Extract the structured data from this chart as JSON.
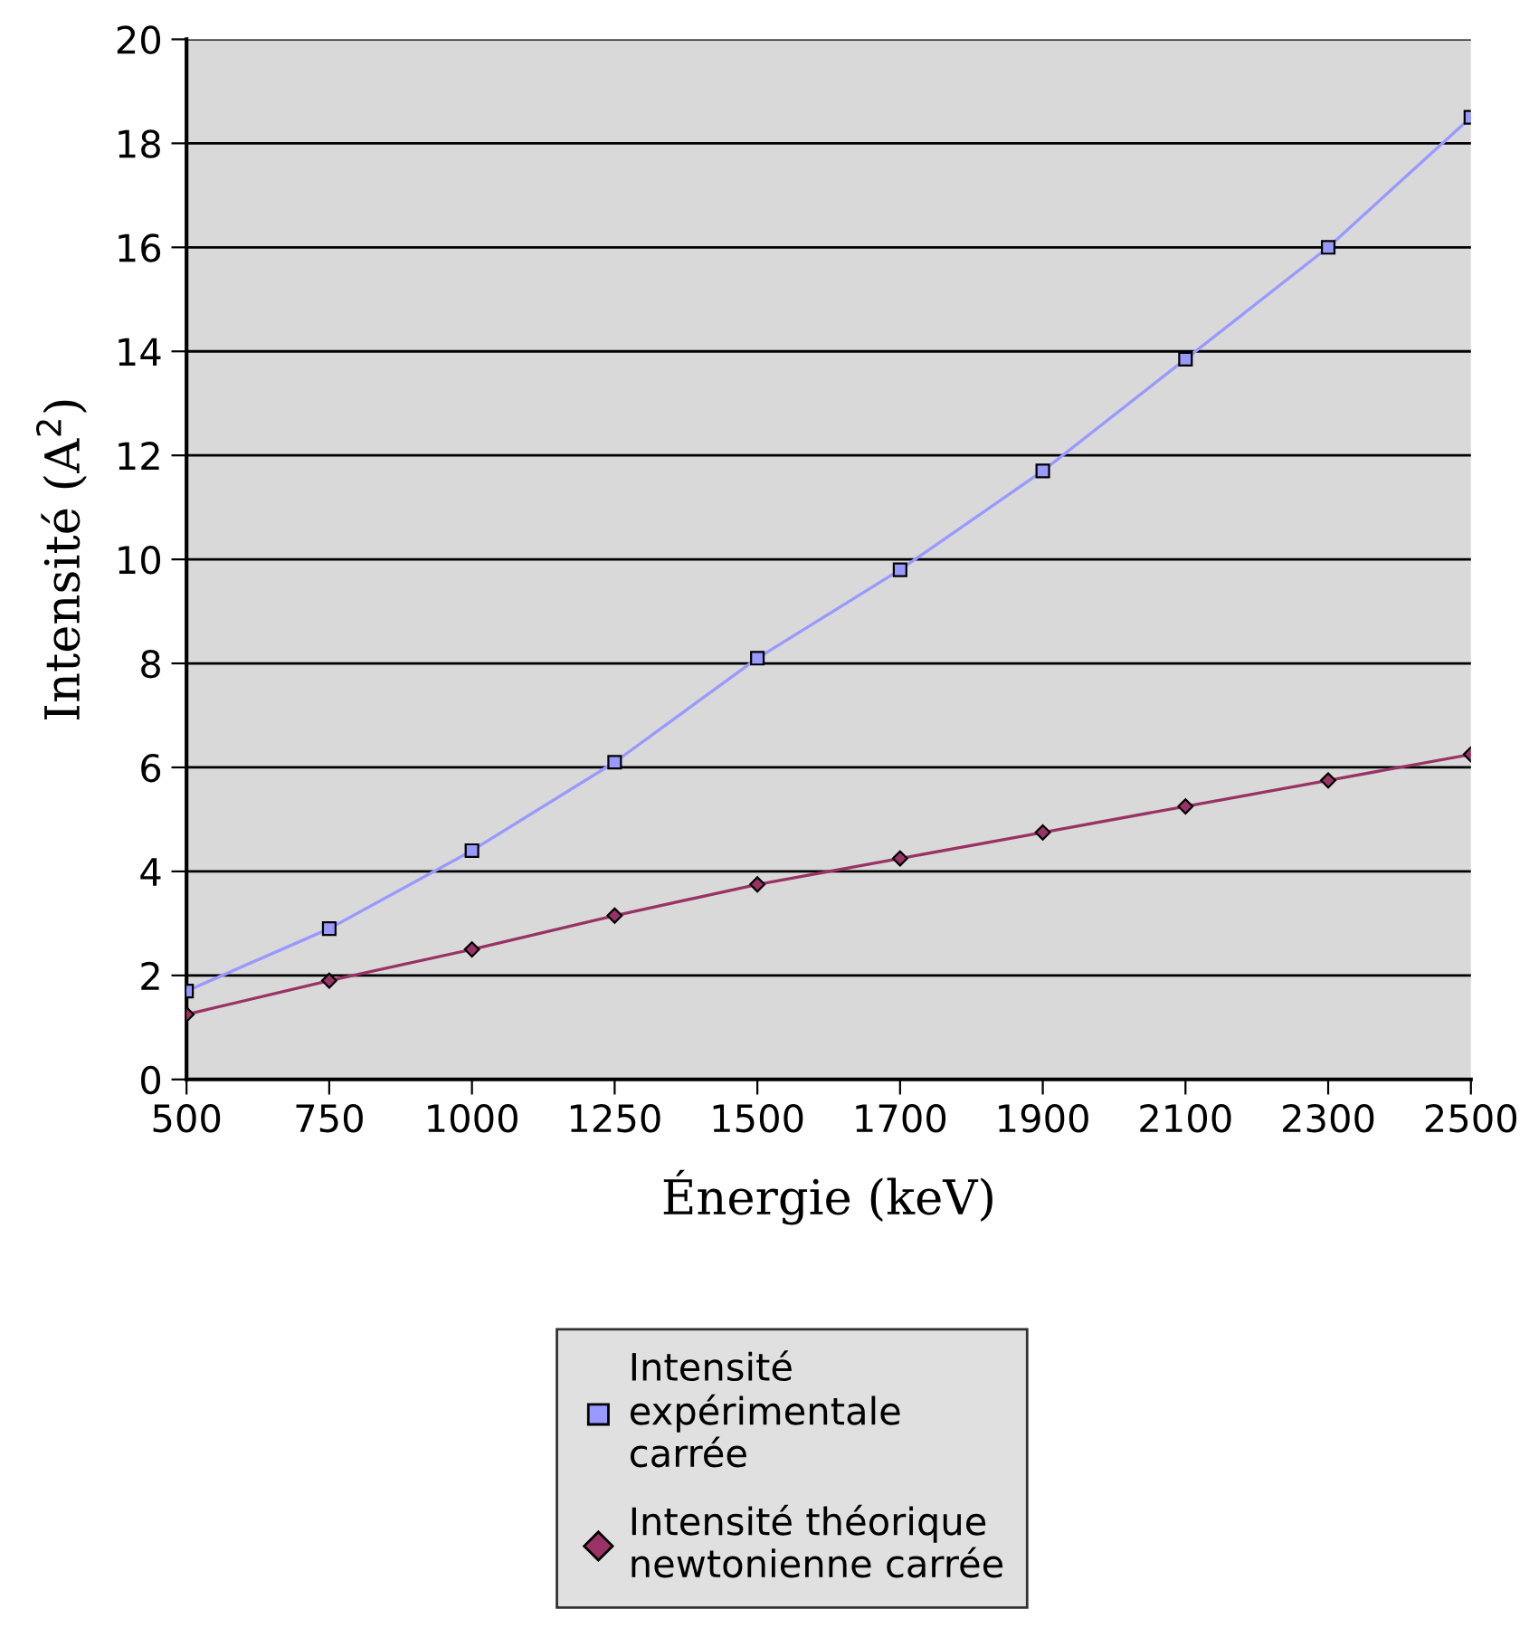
{
  "chart_data": {
    "type": "line",
    "xlabel": "Énergie (keV)",
    "ylabel": "Intensité (A$^{2}$)",
    "categories": [
      "500",
      "750",
      "1000",
      "1250",
      "1500",
      "1700",
      "1900",
      "2100",
      "2300",
      "2500"
    ],
    "series": [
      {
        "name": "Intensité\nexpérimentale\ncarrée",
        "color": "#9999ff",
        "marker": "square",
        "values": [
          1.7,
          2.9,
          4.4,
          6.1,
          8.1,
          9.8,
          11.7,
          13.85,
          16.0,
          18.5
        ]
      },
      {
        "name": "Intensité théorique\nnewtonienne carrée",
        "color": "#993366",
        "marker": "diamond",
        "values": [
          1.25,
          1.9,
          2.5,
          3.15,
          3.75,
          4.25,
          4.75,
          5.25,
          5.75,
          6.25
        ]
      }
    ],
    "ylim": [
      0,
      20
    ],
    "yticks": [
      0,
      2,
      4,
      6,
      8,
      10,
      12,
      14,
      16,
      18,
      20
    ],
    "grid": "y",
    "legend": "bottom",
    "line_style": "solid"
  }
}
